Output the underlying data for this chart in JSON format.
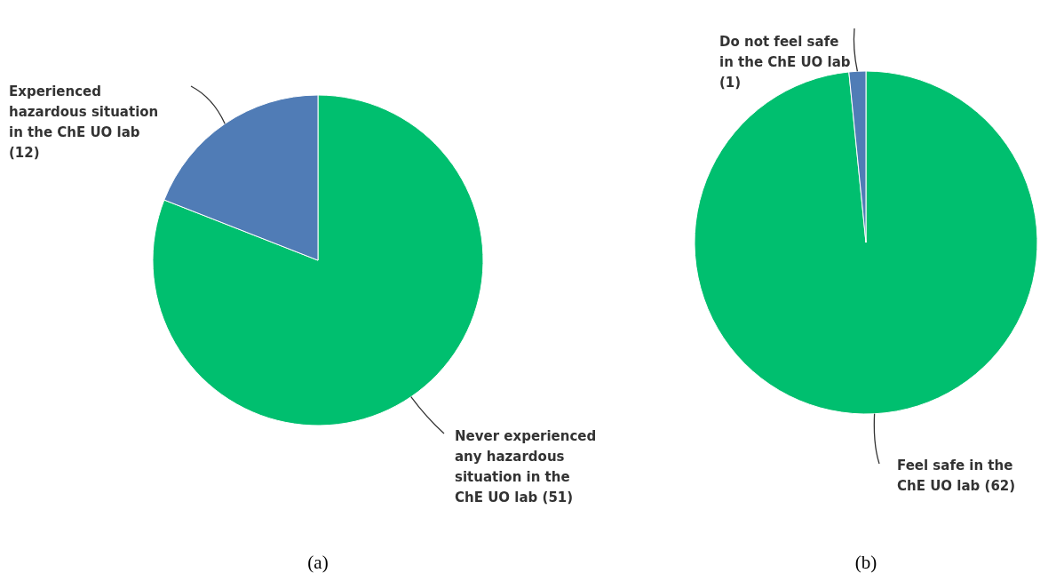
{
  "chart_data": [
    {
      "type": "pie",
      "title": "(a)",
      "categories": [
        "Never experienced any hazardous situation in the ChE UO lab",
        "Experienced hazardous situation in the ChE UO lab"
      ],
      "values": [
        51,
        12
      ],
      "value_labels": [
        "(51)",
        "(12)"
      ],
      "colors": [
        "#00bf6f",
        "#507cb6"
      ]
    },
    {
      "type": "pie",
      "title": "(b)",
      "categories": [
        "Feel safe in the ChE UO lab",
        "Do not feel safe in the ChE UO lab"
      ],
      "values": [
        62,
        1
      ],
      "value_labels": [
        "(62)",
        "(1)"
      ],
      "colors": [
        "#00bf6f",
        "#507cb6"
      ]
    }
  ]
}
